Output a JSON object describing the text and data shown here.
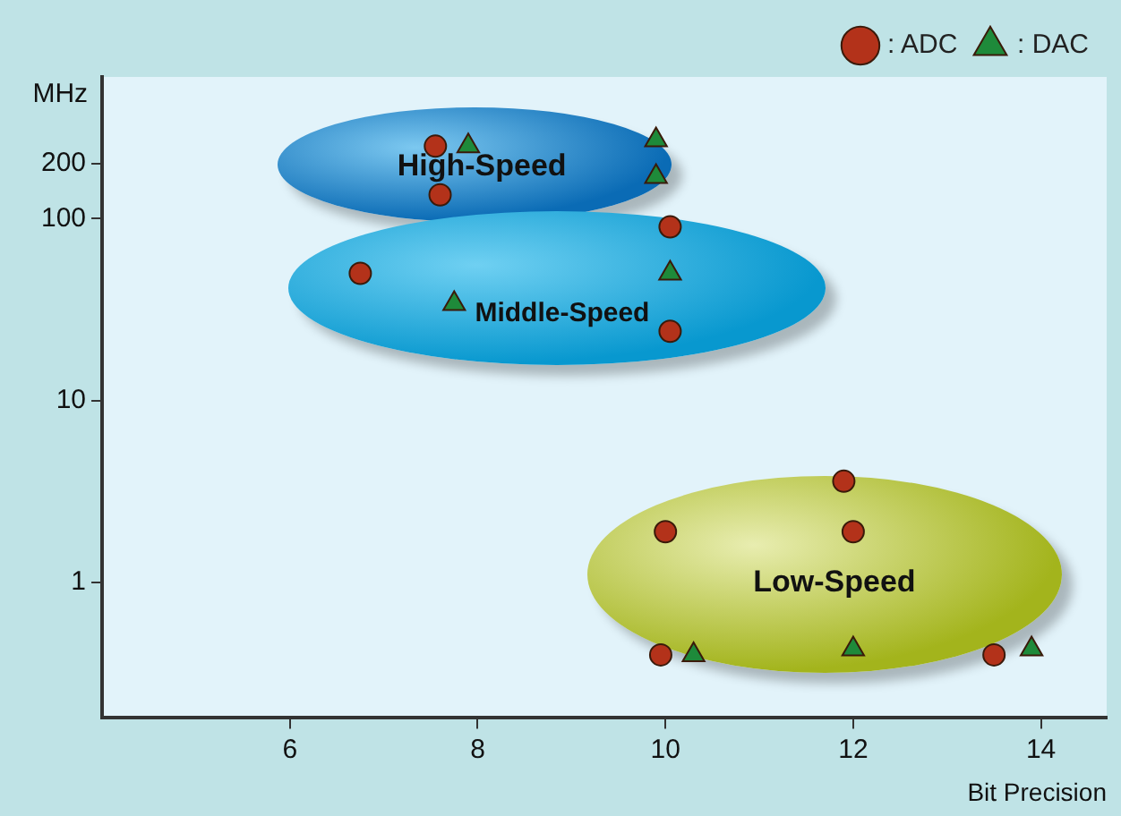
{
  "chart_data": {
    "type": "scatter",
    "xlabel": "Bit Precision",
    "ylabel": "MHz",
    "xlim": [
      4,
      14.7
    ],
    "xticks": [
      6,
      8,
      10,
      12,
      14
    ],
    "ylim": [
      0.18,
      600
    ],
    "yticks": [
      1,
      10,
      100,
      200
    ],
    "grid": false,
    "legend": "top right",
    "log": "y",
    "series": [
      {
        "name": ": ADC",
        "color": "#b3321a",
        "marker": "circle",
        "x": [
          7.55,
          7.6,
          6.75,
          10.05,
          10.05,
          11.9,
          10,
          12,
          9.95,
          13.5
        ],
        "values": [
          250,
          135,
          50,
          90,
          24,
          3.6,
          1.9,
          1.9,
          0.4,
          0.4
        ]
      },
      {
        "name": ": DAC",
        "color": "#1e8a3a",
        "marker": "triangle",
        "x": [
          7.9,
          9.9,
          9.9,
          7.75,
          10.05,
          10.3,
          12,
          13.9
        ],
        "values": [
          250,
          270,
          170,
          34,
          50,
          0.4,
          0.43,
          0.43
        ]
      }
    ],
    "annotations": [
      "High-Speed",
      "Middle-Speed",
      "Low-Speed"
    ]
  }
}
